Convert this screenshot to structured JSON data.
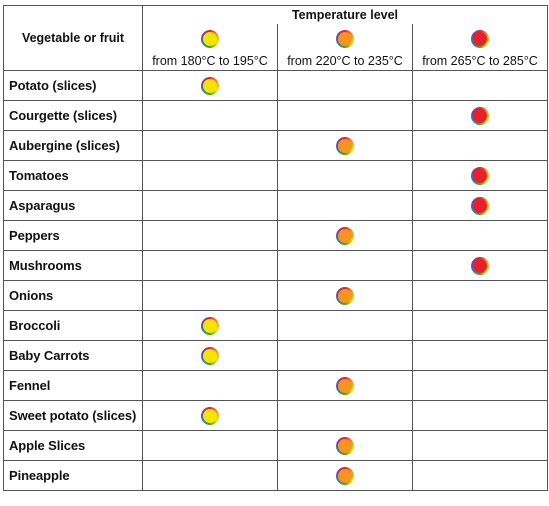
{
  "table": {
    "corner": "Vegetable or fruit",
    "group_header": "Temperature level",
    "columns": [
      {
        "label": "from 180°C to 195°C",
        "color": "#f2e600"
      },
      {
        "label": "from 220°C to 235°C",
        "color": "#f7941d"
      },
      {
        "label": "from 265°C to 285°C",
        "color": "#e8202a"
      }
    ],
    "rows": [
      {
        "name": "Potato (slices)",
        "level": 0
      },
      {
        "name": "Courgette (slices)",
        "level": 2
      },
      {
        "name": "Aubergine (slices)",
        "level": 1
      },
      {
        "name": "Tomatoes",
        "level": 2
      },
      {
        "name": "Asparagus",
        "level": 2
      },
      {
        "name": "Peppers",
        "level": 1
      },
      {
        "name": "Mushrooms",
        "level": 2
      },
      {
        "name": "Onions",
        "level": 1
      },
      {
        "name": "Broccoli",
        "level": 0
      },
      {
        "name": "Baby Carrots",
        "level": 0
      },
      {
        "name": "Fennel",
        "level": 1
      },
      {
        "name": "Sweet potato (slices)",
        "level": 0
      },
      {
        "name": "Apple Slices",
        "level": 1
      },
      {
        "name": "Pineapple",
        "level": 1
      }
    ]
  }
}
